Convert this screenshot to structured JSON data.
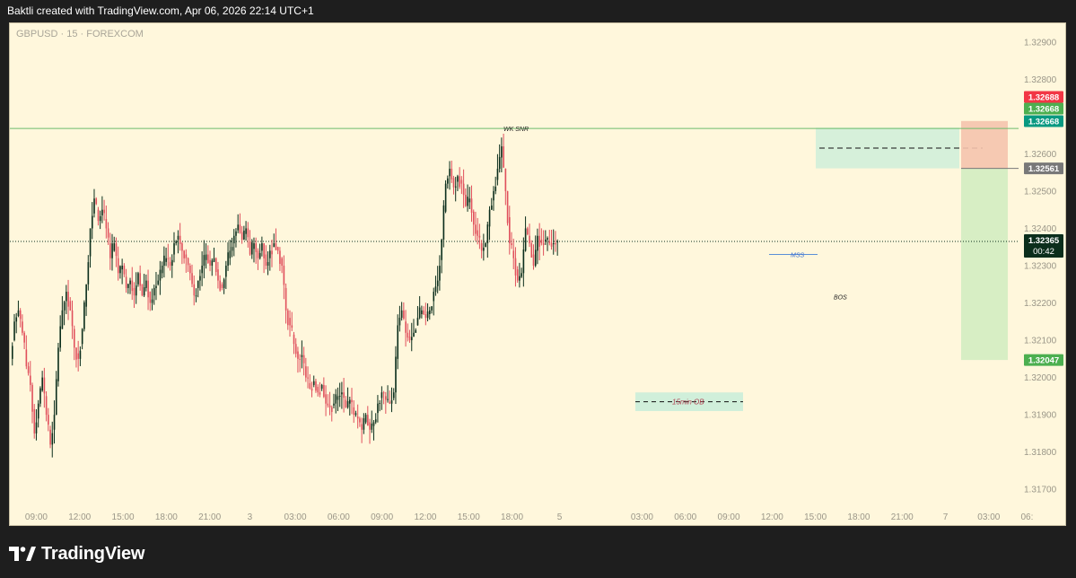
{
  "header": {
    "attribution": "Baktli created with TradingView.com, Apr 06, 2026 22:14 UTC+1"
  },
  "symbol": {
    "label": "GBPUSD · 15 · FOREXCOM"
  },
  "footer": {
    "brand": "TradingView"
  },
  "annotations": {
    "wk_snr": "WK SNR",
    "mss": "MSS",
    "bos": "BOS",
    "ob": "15min OB"
  },
  "price_tags": {
    "stop": "1.32688",
    "target_top": "1.32668",
    "entry_level": "1.32668",
    "sl_line": "1.32561",
    "last": "1.32365",
    "countdown": "00:42",
    "tp": "1.32047"
  },
  "colors": {
    "background": "#fff7dc",
    "up_candle": "#0b2e1c",
    "down_candle": "#e0505c",
    "wk_line": "#6dbd6b",
    "zone_teal": "#c4ecd9",
    "stop_zone": "#f5c3ad",
    "target_zone": "#d3ecc1",
    "stop_tag": "#f23645",
    "target_tag": "#4caf50",
    "entry_tag": "#089981",
    "sl_tag": "#787878",
    "last_tag": "#0b2e1c"
  },
  "chart_data": {
    "type": "candlestick",
    "symbol": "GBPUSD",
    "timeframe": "15",
    "ylim": [
      1.3165,
      1.3295
    ],
    "y_ticks": [
      "1.32900",
      "1.32800",
      "1.32600",
      "1.32500",
      "1.32400",
      "1.32300",
      "1.32200",
      "1.32100",
      "1.32000",
      "1.31900",
      "1.31800",
      "1.31700"
    ],
    "x_ticks": [
      "09:00",
      "12:00",
      "15:00",
      "18:00",
      "21:00",
      "3",
      "03:00",
      "06:00",
      "09:00",
      "12:00",
      "15:00",
      "18:00",
      "5",
      "03:00",
      "06:00",
      "09:00",
      "12:00",
      "15:00",
      "18:00",
      "21:00",
      "7",
      "03:00",
      "06: "
    ],
    "x_tick_fraction": [
      0.025,
      0.066,
      0.107,
      0.148,
      0.189,
      0.227,
      0.27,
      0.311,
      0.352,
      0.393,
      0.434,
      0.475,
      0.52,
      0.598,
      0.639,
      0.68,
      0.721,
      0.762,
      0.803,
      0.844,
      0.885,
      0.926,
      0.963
    ],
    "levels": {
      "wk_snr": 1.32668,
      "last_price": 1.32365,
      "sl_line": 1.32561,
      "stop": 1.32688,
      "tp": 1.32047,
      "ob": 1.31935
    },
    "path": [
      1.3205,
      1.3215,
      1.3218,
      1.3212,
      1.3203,
      1.3198,
      1.3185,
      1.3193,
      1.32,
      1.319,
      1.3182,
      1.319,
      1.3208,
      1.3218,
      1.3223,
      1.3218,
      1.3208,
      1.3205,
      1.3213,
      1.3225,
      1.324,
      1.3248,
      1.3242,
      1.3245,
      1.324,
      1.3232,
      1.3236,
      1.3228,
      1.323,
      1.3224,
      1.3226,
      1.3222,
      1.3228,
      1.3222,
      1.3226,
      1.322,
      1.3224,
      1.3226,
      1.323,
      1.3232,
      1.323,
      1.3236,
      1.3238,
      1.3234,
      1.3232,
      1.3228,
      1.3222,
      1.3226,
      1.323,
      1.3233,
      1.323,
      1.3232,
      1.3226,
      1.3224,
      1.323,
      1.3234,
      1.3238,
      1.3241,
      1.3237,
      1.324,
      1.3233,
      1.3236,
      1.3232,
      1.3236,
      1.323,
      1.3234,
      1.3236,
      1.3234,
      1.323,
      1.3218,
      1.3214,
      1.3209,
      1.3205,
      1.3206,
      1.32,
      1.3197,
      1.3199,
      1.3196,
      1.3198,
      1.3193,
      1.3192,
      1.3193,
      1.3195,
      1.3196,
      1.3192,
      1.3194,
      1.319,
      1.3189,
      1.3186,
      1.319,
      1.3186,
      1.3188,
      1.3193,
      1.3196,
      1.3194,
      1.3193,
      1.3196,
      1.3214,
      1.3218,
      1.3212,
      1.321,
      1.3212,
      1.3216,
      1.3218,
      1.3216,
      1.3218,
      1.3223,
      1.3226,
      1.3237,
      1.3252,
      1.3256,
      1.3251,
      1.3254,
      1.3252,
      1.3246,
      1.3248,
      1.3241,
      1.3238,
      1.3234,
      1.3236,
      1.3245,
      1.325,
      1.3256,
      1.3262,
      1.325,
      1.3236,
      1.3232,
      1.3226,
      1.3228,
      1.324,
      1.3236,
      1.323,
      1.3238,
      1.3236,
      1.3237,
      1.3236,
      1.3236,
      1.32365
    ]
  }
}
